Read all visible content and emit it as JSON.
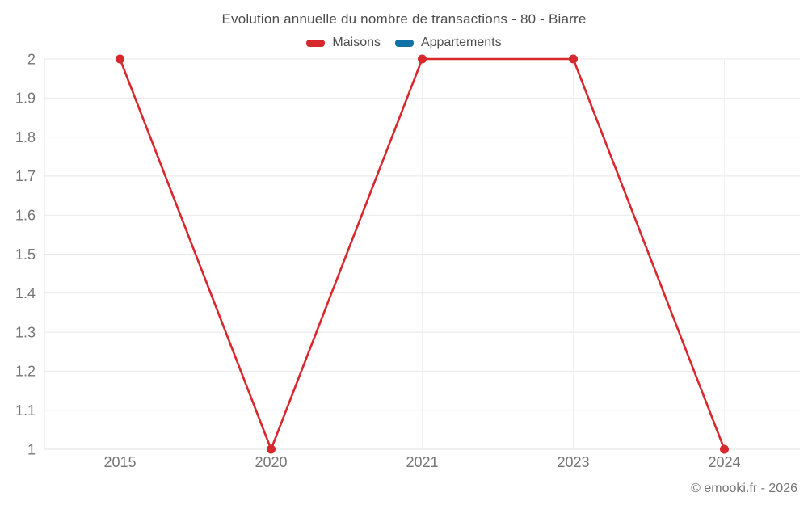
{
  "header": {
    "title": "Evolution annuelle du nombre de transactions - 80 - Biarre"
  },
  "legend": {
    "items": [
      {
        "label": "Maisons",
        "color": "#d7282d"
      },
      {
        "label": "Appartements",
        "color": "#0f71a6"
      }
    ]
  },
  "footer": {
    "copyright": "© emooki.fr - 2026"
  },
  "colors": {
    "grid_horizontal": "#e8e8e8",
    "grid_vertical": "#f0f0f0",
    "axis_line": "#e2e2e2",
    "tick_text": "#757575",
    "title_text": "#4d4d4d",
    "maisons": "#d7282d",
    "appartements": "#0f71a6"
  },
  "chart_data": {
    "type": "line",
    "title": "Evolution annuelle du nombre de transactions - 80 - Biarre",
    "categories": [
      "2015",
      "2020",
      "2021",
      "2023",
      "2024"
    ],
    "series": [
      {
        "name": "Maisons",
        "color": "#d7282d",
        "values": [
          2,
          1,
          2,
          2,
          1
        ]
      },
      {
        "name": "Appartements",
        "color": "#0f71a6",
        "values": []
      }
    ],
    "xlabel": "",
    "ylabel": "",
    "ylim": [
      1,
      2
    ],
    "yticks": [
      1,
      1.1,
      1.2,
      1.3,
      1.4,
      1.5,
      1.6,
      1.7,
      1.8,
      1.9,
      2
    ],
    "ytick_labels": [
      "1",
      "1.1",
      "1.2",
      "1.3",
      "1.4",
      "1.5",
      "1.6",
      "1.7",
      "1.8",
      "1.9",
      "2"
    ],
    "grid": true,
    "marker": "circle",
    "legend_position": "top"
  }
}
